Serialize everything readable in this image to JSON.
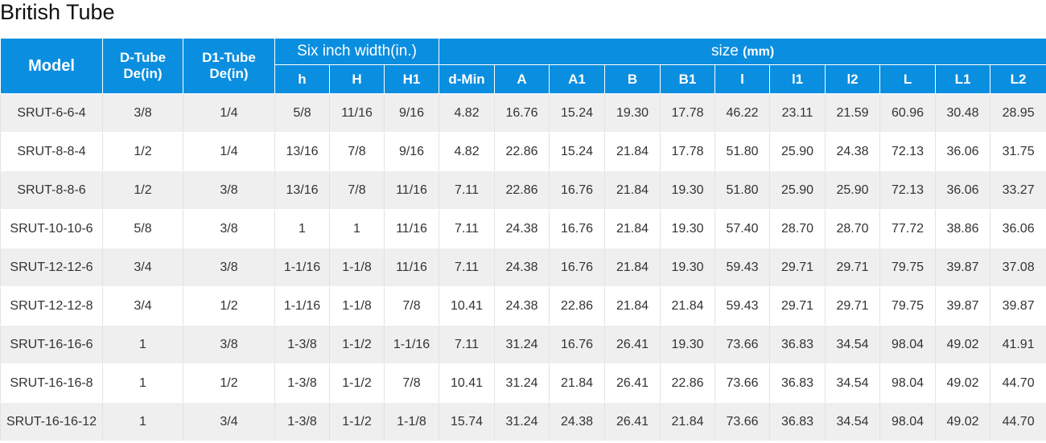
{
  "title": "British Tube",
  "table": {
    "header": {
      "model": "Model",
      "d_tube": [
        "D-Tube",
        "De(in)"
      ],
      "d1_tube": [
        "D1-Tube",
        "De(in)"
      ],
      "six_inch": "Six inch width(in.)",
      "size": "size",
      "size_unit": "(mm)",
      "columns": [
        "h",
        "H",
        "H1",
        "d-Min",
        "A",
        "A1",
        "B",
        "B1",
        "l",
        "l1",
        "l2",
        "L",
        "L1",
        "L2"
      ]
    },
    "rows": [
      [
        "SRUT-6-6-4",
        "3/8",
        "1/4",
        "5/8",
        "11/16",
        "9/16",
        "4.82",
        "16.76",
        "15.24",
        "19.30",
        "17.78",
        "46.22",
        "23.11",
        "21.59",
        "60.96",
        "30.48",
        "28.95"
      ],
      [
        "SRUT-8-8-4",
        "1/2",
        "1/4",
        "13/16",
        "7/8",
        "9/16",
        "4.82",
        "22.86",
        "15.24",
        "21.84",
        "17.78",
        "51.80",
        "25.90",
        "24.38",
        "72.13",
        "36.06",
        "31.75"
      ],
      [
        "SRUT-8-8-6",
        "1/2",
        "3/8",
        "13/16",
        "7/8",
        "11/16",
        "7.11",
        "22.86",
        "16.76",
        "21.84",
        "19.30",
        "51.80",
        "25.90",
        "25.90",
        "72.13",
        "36.06",
        "33.27"
      ],
      [
        "SRUT-10-10-6",
        "5/8",
        "3/8",
        "1",
        "1",
        "11/16",
        "7.11",
        "24.38",
        "16.76",
        "21.84",
        "19.30",
        "57.40",
        "28.70",
        "28.70",
        "77.72",
        "38.86",
        "36.06"
      ],
      [
        "SRUT-12-12-6",
        "3/4",
        "3/8",
        "1-1/16",
        "1-1/8",
        "11/16",
        "7.11",
        "24.38",
        "16.76",
        "21.84",
        "19.30",
        "59.43",
        "29.71",
        "29.71",
        "79.75",
        "39.87",
        "37.08"
      ],
      [
        "SRUT-12-12-8",
        "3/4",
        "1/2",
        "1-1/16",
        "1-1/8",
        "7/8",
        "10.41",
        "24.38",
        "22.86",
        "21.84",
        "21.84",
        "59.43",
        "29.71",
        "29.71",
        "79.75",
        "39.87",
        "39.87"
      ],
      [
        "SRUT-16-16-6",
        "1",
        "3/8",
        "1-3/8",
        "1-1/2",
        "1-1/16",
        "7.11",
        "31.24",
        "16.76",
        "26.41",
        "19.30",
        "73.66",
        "36.83",
        "34.54",
        "98.04",
        "49.02",
        "41.91"
      ],
      [
        "SRUT-16-16-8",
        "1",
        "1/2",
        "1-3/8",
        "1-1/2",
        "7/8",
        "10.41",
        "31.24",
        "21.84",
        "26.41",
        "22.86",
        "73.66",
        "36.83",
        "34.54",
        "98.04",
        "49.02",
        "44.70"
      ],
      [
        "SRUT-16-16-12",
        "1",
        "3/4",
        "1-3/8",
        "1-1/2",
        "1-1/8",
        "15.74",
        "31.24",
        "24.38",
        "26.41",
        "21.84",
        "73.66",
        "36.83",
        "34.54",
        "98.04",
        "49.02",
        "44.70"
      ]
    ]
  }
}
